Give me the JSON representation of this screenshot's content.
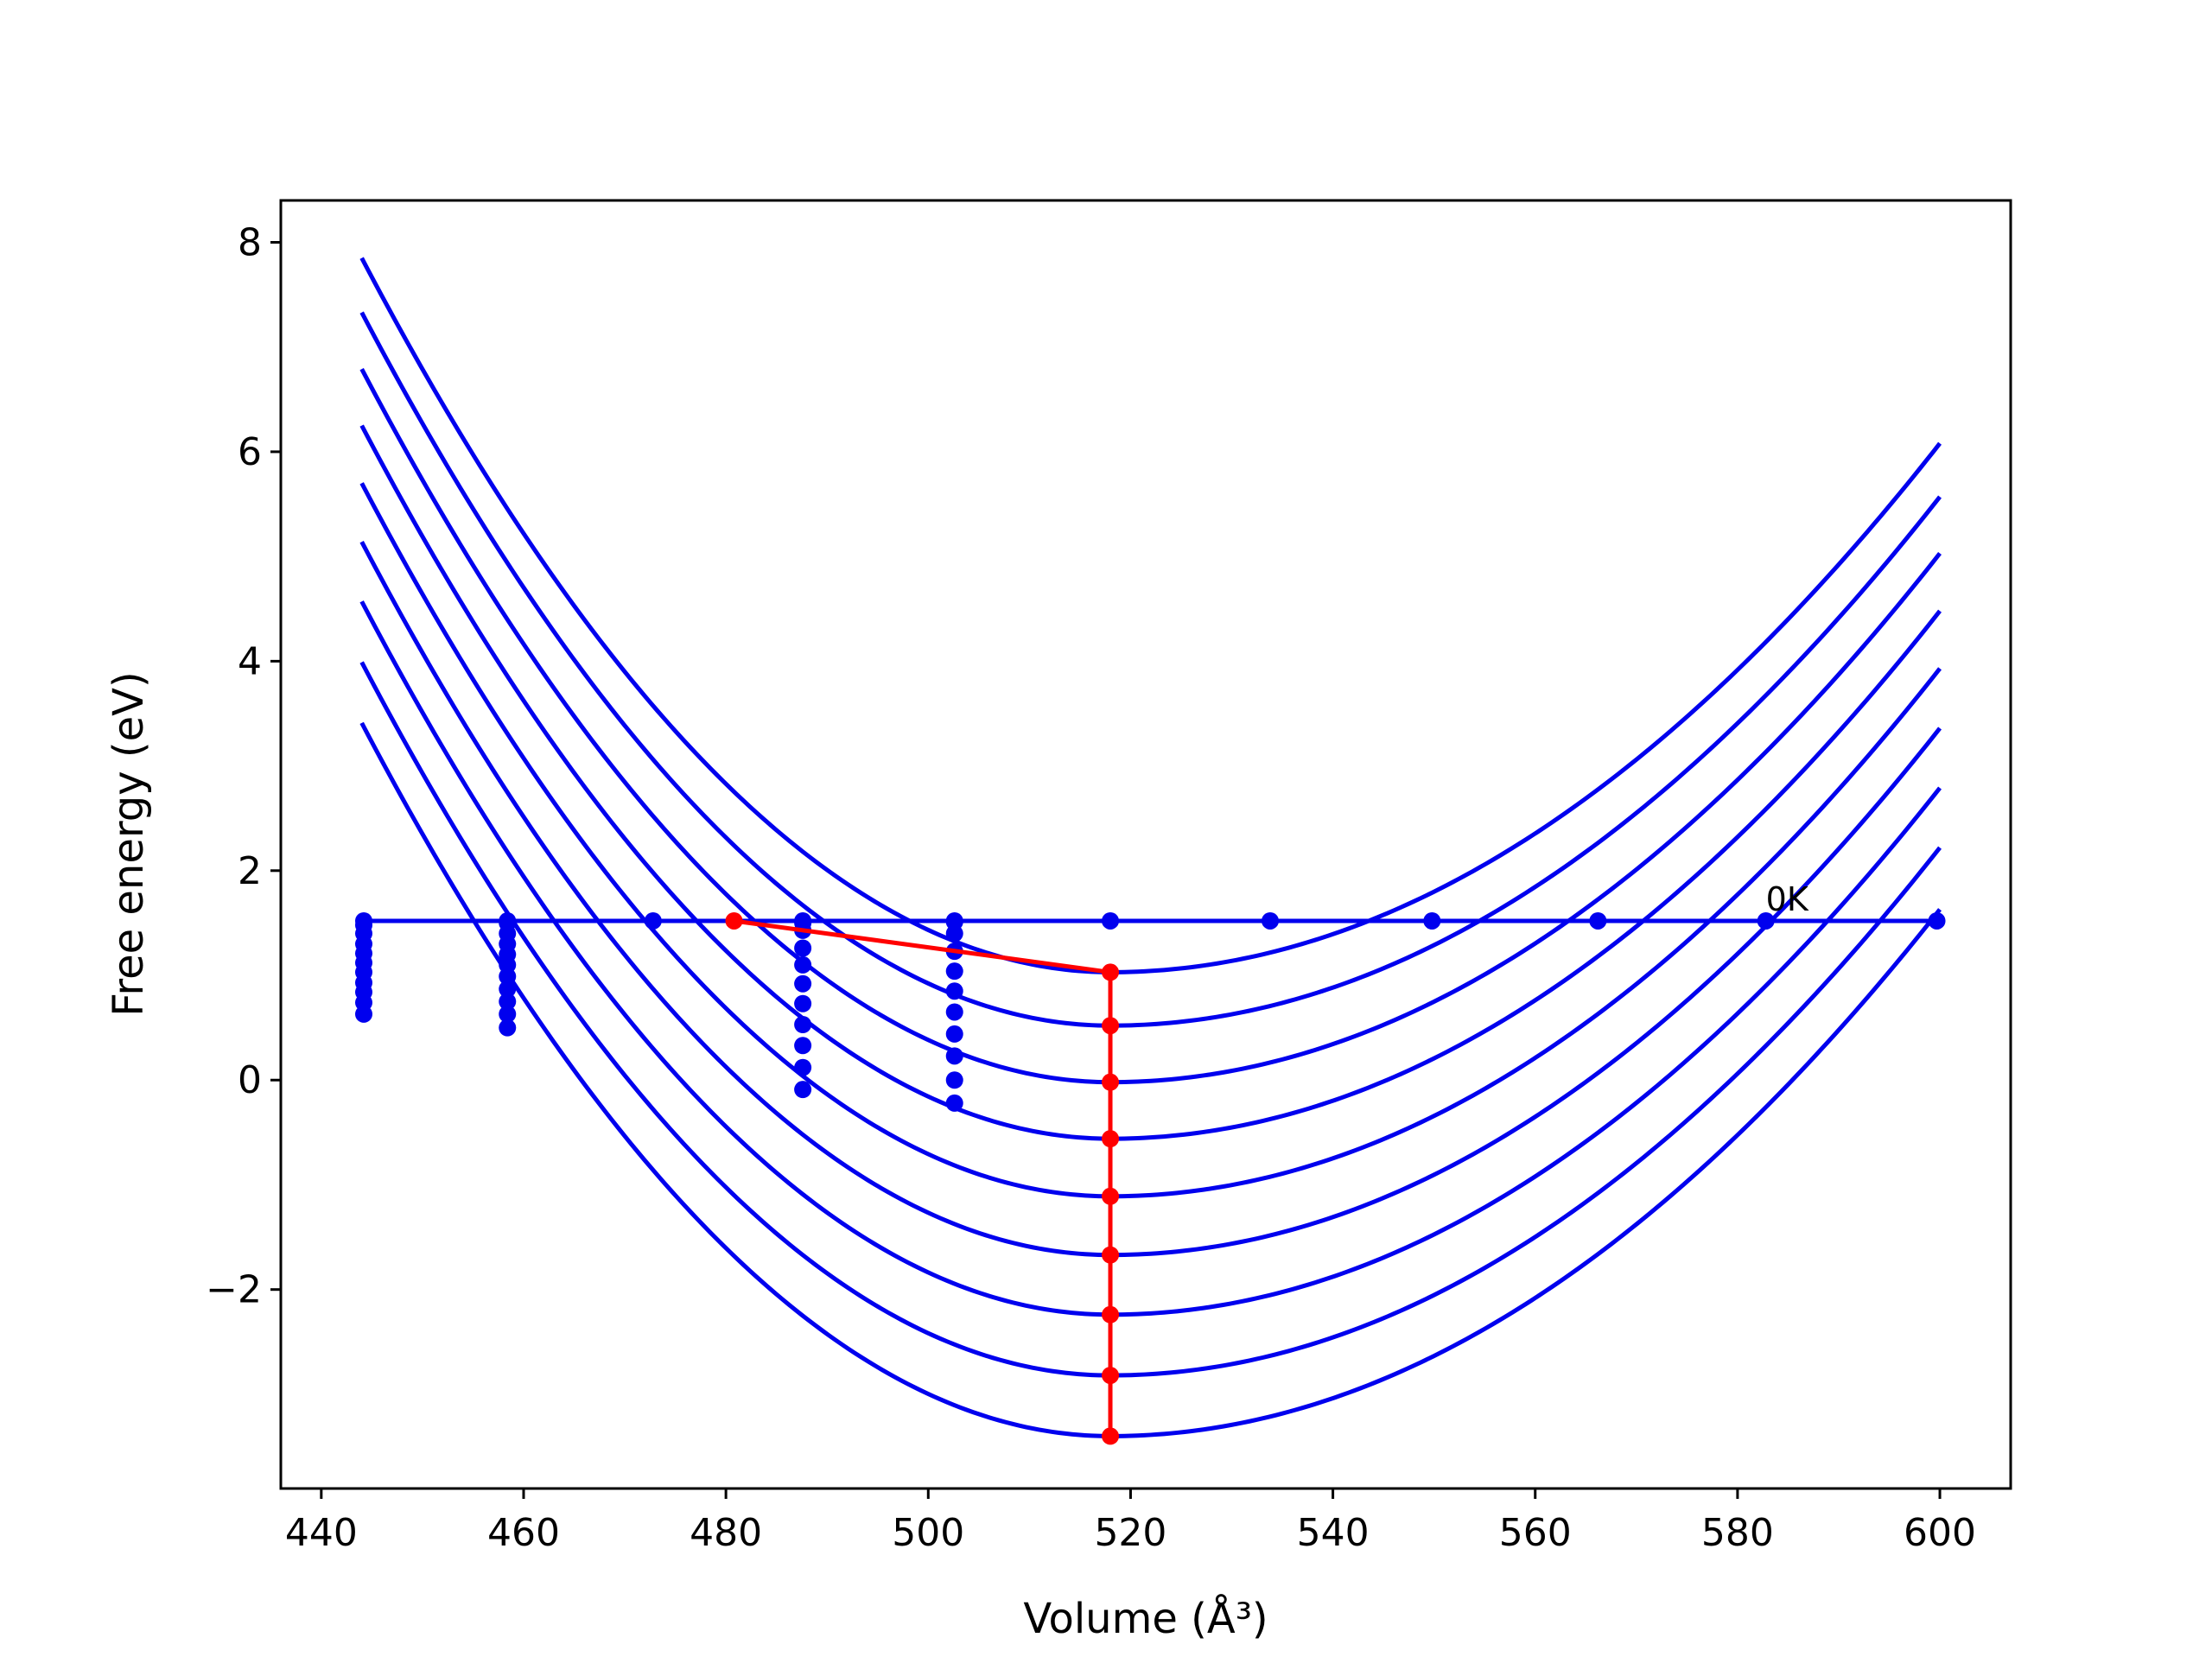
{
  "chart_data": {
    "type": "line",
    "title": "",
    "xlabel": "Volume (Å³)",
    "ylabel": "Free energy (eV)",
    "xlim": [
      436,
      607
    ],
    "ylim": [
      -3.9,
      8.4
    ],
    "xticks": [
      440,
      460,
      480,
      500,
      520,
      540,
      560,
      580,
      600
    ],
    "yticks": [
      -2,
      0,
      2,
      4,
      6,
      8
    ],
    "xtick_labels": [
      "440",
      "460",
      "480",
      "500",
      "520",
      "540",
      "560",
      "580",
      "600"
    ],
    "ytick_labels": [
      "−2",
      "0",
      "2",
      "4",
      "6",
      "8"
    ],
    "grid": false,
    "legend": false,
    "colors": {
      "curves": "#0000ee",
      "path": "#ff0000",
      "axes": "#000000"
    },
    "curves": {
      "x_range": [
        444,
        600
      ],
      "min_volume": 518,
      "series": [
        {
          "min_energy": 1.03,
          "left_energy": 7.85,
          "right_energy": 6.08
        },
        {
          "min_energy": 0.52,
          "left_energy": 7.33,
          "right_energy": 5.57
        },
        {
          "min_energy": -0.02,
          "left_energy": 6.79,
          "right_energy": 5.03
        },
        {
          "min_energy": -0.56,
          "left_energy": 6.25,
          "right_energy": 4.48
        },
        {
          "min_energy": -1.11,
          "left_energy": 5.7,
          "right_energy": 3.93
        },
        {
          "min_energy": -1.67,
          "left_energy": 5.14,
          "right_energy": 3.36
        },
        {
          "min_energy": -2.24,
          "left_energy": 4.57,
          "right_energy": 2.79
        },
        {
          "min_energy": -2.82,
          "left_energy": 3.99,
          "right_energy": 2.22
        },
        {
          "min_energy": -3.4,
          "left_energy": 3.41,
          "right_energy": 1.63
        }
      ]
    },
    "horizontal_line": {
      "y": 1.52,
      "x_range": [
        444,
        600
      ]
    },
    "horizontal_points": {
      "x": [
        444.2,
        458.4,
        472.8,
        487.6,
        502.6,
        518,
        533.8,
        549.8,
        566.2,
        582.8,
        599.7
      ],
      "y": 1.52
    },
    "vertical_point_columns": [
      {
        "x": 444.2,
        "y": [
          1.48,
          1.4,
          1.3,
          1.21,
          1.12,
          1.03,
          0.93,
          0.84,
          0.74,
          0.63
        ]
      },
      {
        "x": 458.4,
        "y": [
          1.5,
          1.4,
          1.3,
          1.2,
          1.1,
          0.99,
          0.87,
          0.75,
          0.63,
          0.5
        ]
      },
      {
        "x": 487.6,
        "y": [
          1.5,
          1.43,
          1.26,
          1.1,
          0.92,
          0.73,
          0.53,
          0.33,
          0.12,
          -0.09
        ]
      },
      {
        "x": 502.6,
        "y": [
          1.51,
          1.4,
          1.23,
          1.04,
          0.85,
          0.65,
          0.44,
          0.23,
          0.0,
          -0.22
        ]
      }
    ],
    "red_path": {
      "x": [
        480.8,
        518,
        518,
        518,
        518,
        518,
        518,
        518,
        518,
        518
      ],
      "y": [
        1.52,
        1.03,
        0.52,
        -0.02,
        -0.56,
        -1.11,
        -1.67,
        -2.24,
        -2.82,
        -3.4
      ]
    },
    "annotations": [
      {
        "text": "0K",
        "x": 582.8,
        "y": 1.52
      }
    ]
  }
}
